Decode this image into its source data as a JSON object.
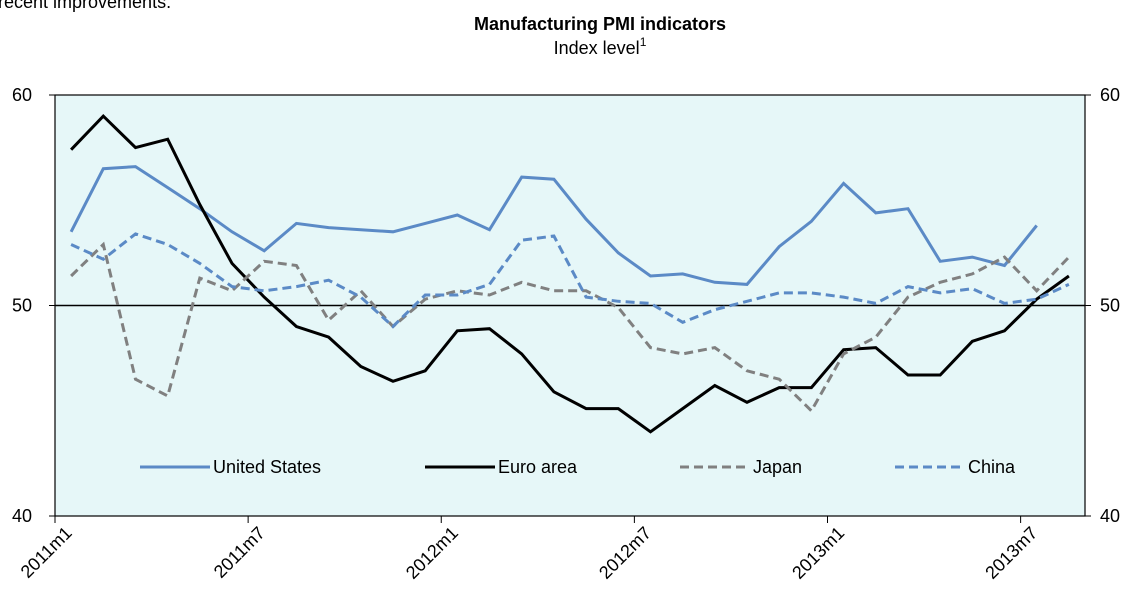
{
  "header_text": "recent improvements.",
  "chart_data": {
    "type": "line",
    "title": "Manufacturing PMI indicators",
    "subtitle": "Index level",
    "subtitle_note": "1",
    "categories": [
      "2011m1",
      null,
      null,
      null,
      null,
      null,
      "2011m7",
      null,
      null,
      null,
      null,
      null,
      "2012m1",
      null,
      null,
      null,
      null,
      null,
      "2012m7",
      null,
      null,
      null,
      null,
      null,
      "2013m1",
      null,
      null,
      null,
      null,
      null,
      "2013m7",
      null
    ],
    "series": [
      {
        "name": "United States",
        "color": "#5b8ac6",
        "dash": false,
        "values": [
          53.5,
          56.5,
          56.6,
          55.6,
          54.6,
          53.5,
          52.6,
          53.9,
          53.7,
          53.6,
          53.5,
          53.9,
          54.3,
          53.6,
          56.1,
          56.0,
          54.1,
          52.5,
          51.4,
          51.5,
          51.1,
          51.0,
          52.8,
          54.0,
          55.8,
          54.4,
          54.6,
          52.1,
          52.3,
          51.9,
          53.8,
          null
        ]
      },
      {
        "name": "Euro area",
        "color": "#000000",
        "dash": false,
        "values": [
          57.4,
          59.0,
          57.5,
          57.9,
          54.8,
          52.0,
          50.4,
          49.0,
          48.5,
          47.1,
          46.4,
          46.9,
          48.8,
          48.9,
          47.7,
          45.9,
          45.1,
          45.1,
          44.0,
          45.1,
          46.2,
          45.4,
          46.1,
          46.1,
          47.9,
          48.0,
          46.7,
          46.7,
          48.3,
          48.8,
          50.3,
          51.4
        ]
      },
      {
        "name": "Japan",
        "color": "#808080",
        "dash": true,
        "values": [
          51.4,
          52.9,
          46.5,
          45.7,
          51.3,
          50.7,
          52.1,
          51.9,
          49.3,
          50.7,
          49.0,
          50.3,
          50.7,
          50.5,
          51.1,
          50.7,
          50.7,
          49.9,
          48.0,
          47.7,
          48.0,
          46.9,
          46.5,
          45.0,
          47.7,
          48.5,
          50.4,
          51.1,
          51.5,
          52.3,
          50.7,
          52.3
        ]
      },
      {
        "name": "China",
        "color": "#5b8ac6",
        "dash": true,
        "values": [
          52.9,
          52.2,
          53.4,
          52.9,
          52.0,
          50.9,
          50.7,
          50.9,
          51.2,
          50.4,
          49.0,
          50.5,
          50.5,
          51.0,
          53.1,
          53.3,
          50.4,
          50.2,
          50.1,
          49.2,
          49.8,
          50.2,
          50.6,
          50.6,
          50.4,
          50.1,
          50.9,
          50.6,
          50.8,
          50.1,
          50.3,
          51.0
        ]
      }
    ],
    "ylim": [
      40,
      60
    ],
    "yticks": [
      40,
      50,
      60
    ],
    "y2lim": [
      40,
      60
    ],
    "y2ticks": [
      40,
      50,
      60
    ],
    "hline": 50,
    "grid": false,
    "legend": "bottom",
    "background": "#e6f7f8"
  }
}
